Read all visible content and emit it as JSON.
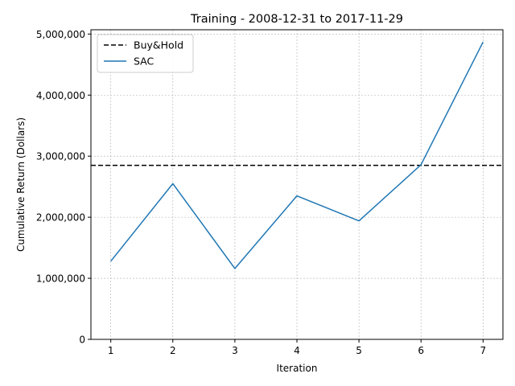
{
  "chart_data": {
    "type": "line",
    "title": "Training - 2008-12-31 to 2017-11-29",
    "xlabel": "Iteration",
    "ylabel": "Cumulative Return (Dollars)",
    "x": [
      1,
      2,
      3,
      4,
      5,
      6,
      7
    ],
    "xlim": [
      0.68,
      7.32
    ],
    "ylim": [
      0,
      5070000
    ],
    "xticks": [
      1,
      2,
      3,
      4,
      5,
      6,
      7
    ],
    "yticks": [
      0,
      1000000,
      2000000,
      3000000,
      4000000,
      5000000
    ],
    "ytick_labels": [
      "0",
      "1,000,000",
      "2,000,000",
      "3,000,000",
      "4,000,000",
      "5,000,000"
    ],
    "grid": true,
    "legend_position": "upper-left",
    "series": [
      {
        "name": "Buy&Hold",
        "style": "dashed",
        "color": "#000000",
        "hline": 2850000
      },
      {
        "name": "SAC",
        "style": "solid",
        "color": "#1f77b4",
        "values": [
          1280000,
          2550000,
          1160000,
          2350000,
          1940000,
          2860000,
          4870000
        ]
      }
    ]
  }
}
